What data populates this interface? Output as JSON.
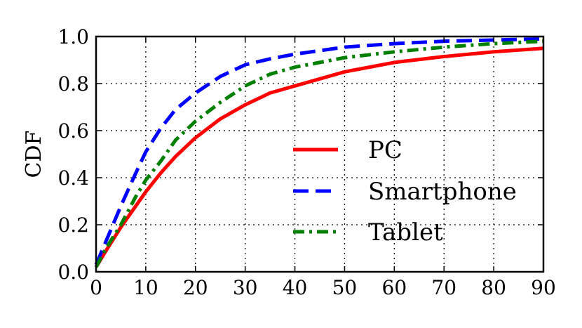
{
  "chart_data": {
    "type": "line",
    "xlabel": "",
    "ylabel": "CDF",
    "xlim": [
      0,
      90
    ],
    "ylim": [
      0,
      1.0
    ],
    "xticks": [
      "0",
      "10",
      "20",
      "30",
      "40",
      "50",
      "60",
      "70",
      "80",
      "90"
    ],
    "yticks": [
      "0.0",
      "0.2",
      "0.4",
      "0.6",
      "0.8",
      "1.0"
    ],
    "grid": true,
    "legend_position": "center-right",
    "series": [
      {
        "name": "PC",
        "color": "#ff0000",
        "style": "solid",
        "x": [
          0,
          2,
          5,
          8,
          10,
          13,
          16,
          20,
          25,
          30,
          35,
          40,
          50,
          60,
          70,
          80,
          90
        ],
        "y": [
          0.02,
          0.09,
          0.19,
          0.28,
          0.34,
          0.42,
          0.49,
          0.57,
          0.65,
          0.71,
          0.76,
          0.79,
          0.85,
          0.89,
          0.915,
          0.935,
          0.95
        ]
      },
      {
        "name": "Smartphone",
        "color": "#0000ff",
        "style": "dashed",
        "x": [
          0,
          2,
          5,
          8,
          10,
          13,
          16,
          20,
          25,
          30,
          35,
          40,
          50,
          60,
          70,
          80,
          90
        ],
        "y": [
          0.03,
          0.13,
          0.28,
          0.42,
          0.51,
          0.61,
          0.69,
          0.76,
          0.83,
          0.88,
          0.905,
          0.925,
          0.955,
          0.97,
          0.98,
          0.985,
          0.99
        ]
      },
      {
        "name": "Tablet",
        "color": "#008000",
        "style": "dashdot",
        "x": [
          0,
          2,
          5,
          8,
          10,
          13,
          16,
          20,
          25,
          30,
          35,
          40,
          50,
          60,
          70,
          80,
          90
        ],
        "y": [
          0.02,
          0.1,
          0.2,
          0.32,
          0.39,
          0.47,
          0.56,
          0.64,
          0.72,
          0.79,
          0.84,
          0.87,
          0.91,
          0.935,
          0.955,
          0.97,
          0.98
        ]
      }
    ]
  }
}
